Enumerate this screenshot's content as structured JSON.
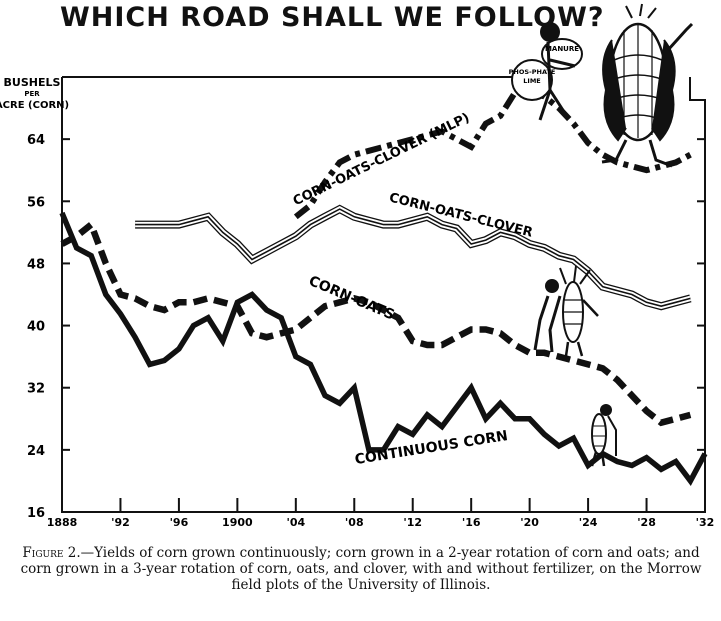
{
  "title": "WHICH ROAD SHALL WE FOLLOW?",
  "caption": {
    "label": "Figure 2.",
    "text": "—Yields of corn grown continuously; corn grown in a 2-year rotation of corn and oats; and corn grown in a 3-year rotation of corn, oats, and clover, with and without fertilizer, on the Morrow field plots of the University of Illinois."
  },
  "cartoon": {
    "sack_label": "MANURE",
    "ball_label": "PHOS-PHATE LIME"
  },
  "colors": {
    "ink": "#111111",
    "paper": "#ffffff"
  },
  "chart_data": {
    "type": "line",
    "ylabel": "BUSHELS PER ACRE (CORN)",
    "xlabel": "",
    "xlim": [
      1888,
      1932
    ],
    "ylim": [
      16,
      72
    ],
    "x_ticks": [
      "1888",
      "'92",
      "'96",
      "1900",
      "'04",
      "'08",
      "'12",
      "'16",
      "'20",
      "'24",
      "'28",
      "'32"
    ],
    "y_ticks": [
      16,
      24,
      32,
      40,
      48,
      56,
      64
    ],
    "series": [
      {
        "name": "CORN-OATS-CLOVER (MLP)",
        "style": "dash-dot",
        "points": [
          [
            1904,
            54
          ],
          [
            1905,
            55.5
          ],
          [
            1906,
            58.5
          ],
          [
            1907,
            61
          ],
          [
            1908,
            62
          ],
          [
            1909,
            62.5
          ],
          [
            1910,
            63
          ],
          [
            1911,
            63.5
          ],
          [
            1912,
            64
          ],
          [
            1913,
            64.5
          ],
          [
            1914,
            65
          ],
          [
            1915,
            64
          ],
          [
            1916,
            63
          ],
          [
            1917,
            66
          ],
          [
            1918,
            67
          ],
          [
            1919,
            70
          ],
          [
            1920,
            70
          ],
          [
            1921,
            69.5
          ],
          [
            1922,
            68
          ],
          [
            1923,
            66
          ],
          [
            1924,
            63.5
          ],
          [
            1925,
            62
          ],
          [
            1926,
            61
          ],
          [
            1927,
            60.5
          ],
          [
            1928,
            60
          ],
          [
            1929,
            60.5
          ],
          [
            1930,
            61
          ],
          [
            1931,
            62
          ]
        ]
      },
      {
        "name": "CORN-OATS-CLOVER",
        "style": "triple",
        "points": [
          [
            1893,
            53
          ],
          [
            1894,
            53
          ],
          [
            1895,
            53
          ],
          [
            1896,
            53
          ],
          [
            1897,
            53.5
          ],
          [
            1898,
            54
          ],
          [
            1899,
            52
          ],
          [
            1900,
            50.5
          ],
          [
            1901,
            48.5
          ],
          [
            1902,
            49.5
          ],
          [
            1903,
            50.5
          ],
          [
            1904,
            51.5
          ],
          [
            1905,
            53
          ],
          [
            1906,
            54
          ],
          [
            1907,
            55
          ],
          [
            1908,
            54
          ],
          [
            1909,
            53.5
          ],
          [
            1910,
            53
          ],
          [
            1911,
            53
          ],
          [
            1912,
            53.5
          ],
          [
            1913,
            54
          ],
          [
            1914,
            53
          ],
          [
            1915,
            52.5
          ],
          [
            1916,
            50.5
          ],
          [
            1917,
            51
          ],
          [
            1918,
            52
          ],
          [
            1919,
            51.5
          ],
          [
            1920,
            50.5
          ],
          [
            1921,
            50
          ],
          [
            1922,
            49
          ],
          [
            1923,
            48.5
          ],
          [
            1924,
            47
          ],
          [
            1925,
            45
          ],
          [
            1926,
            44.5
          ],
          [
            1927,
            44
          ],
          [
            1928,
            43
          ],
          [
            1929,
            42.5
          ],
          [
            1930,
            43
          ],
          [
            1931,
            43.5
          ]
        ]
      },
      {
        "name": "CORN-OATS",
        "style": "dashed",
        "points": [
          [
            1888,
            50.5
          ],
          [
            1889,
            51.5
          ],
          [
            1890,
            53
          ],
          [
            1891,
            48
          ],
          [
            1892,
            44
          ],
          [
            1893,
            43.5
          ],
          [
            1894,
            42.5
          ],
          [
            1895,
            42
          ],
          [
            1896,
            43
          ],
          [
            1897,
            43
          ],
          [
            1898,
            43.5
          ],
          [
            1899,
            43
          ],
          [
            1900,
            42.5
          ],
          [
            1901,
            39
          ],
          [
            1902,
            38.5
          ],
          [
            1903,
            39
          ],
          [
            1904,
            39.5
          ],
          [
            1905,
            41
          ],
          [
            1906,
            42.5
          ],
          [
            1907,
            43
          ],
          [
            1908,
            43.5
          ],
          [
            1909,
            43
          ],
          [
            1910,
            42
          ],
          [
            1911,
            41
          ],
          [
            1912,
            38
          ],
          [
            1913,
            37.5
          ],
          [
            1914,
            37.5
          ],
          [
            1915,
            38.5
          ],
          [
            1916,
            39.5
          ],
          [
            1917,
            39.5
          ],
          [
            1918,
            39
          ],
          [
            1919,
            37.5
          ],
          [
            1920,
            36.5
          ],
          [
            1921,
            36.5
          ],
          [
            1922,
            36
          ],
          [
            1923,
            35.5
          ],
          [
            1924,
            35
          ],
          [
            1925,
            34.5
          ],
          [
            1926,
            33
          ],
          [
            1927,
            31
          ],
          [
            1928,
            29
          ],
          [
            1929,
            27.5
          ],
          [
            1930,
            28
          ],
          [
            1931,
            28.5
          ]
        ]
      },
      {
        "name": "CONTINUOUS CORN",
        "style": "solid",
        "points": [
          [
            1888,
            54.5
          ],
          [
            1889,
            50
          ],
          [
            1890,
            49
          ],
          [
            1891,
            44
          ],
          [
            1892,
            41.5
          ],
          [
            1893,
            38.5
          ],
          [
            1894,
            35
          ],
          [
            1895,
            35.5
          ],
          [
            1896,
            37
          ],
          [
            1897,
            40
          ],
          [
            1898,
            41
          ],
          [
            1899,
            38
          ],
          [
            1900,
            43
          ],
          [
            1901,
            44
          ],
          [
            1902,
            42
          ],
          [
            1903,
            41
          ],
          [
            1904,
            36
          ],
          [
            1905,
            35
          ],
          [
            1906,
            31
          ],
          [
            1907,
            30
          ],
          [
            1908,
            32
          ],
          [
            1909,
            24
          ],
          [
            1910,
            24
          ],
          [
            1911,
            27
          ],
          [
            1912,
            26
          ],
          [
            1913,
            28.5
          ],
          [
            1914,
            27
          ],
          [
            1915,
            29.5
          ],
          [
            1916,
            32
          ],
          [
            1917,
            28
          ],
          [
            1918,
            30
          ],
          [
            1919,
            28
          ],
          [
            1920,
            28
          ],
          [
            1921,
            26
          ],
          [
            1922,
            24.5
          ],
          [
            1923,
            25.5
          ],
          [
            1924,
            22
          ],
          [
            1925,
            23.5
          ],
          [
            1926,
            22.5
          ],
          [
            1927,
            22
          ],
          [
            1928,
            23
          ],
          [
            1929,
            21.5
          ],
          [
            1930,
            22.5
          ],
          [
            1931,
            20
          ],
          [
            1932,
            23.5
          ]
        ]
      }
    ]
  }
}
